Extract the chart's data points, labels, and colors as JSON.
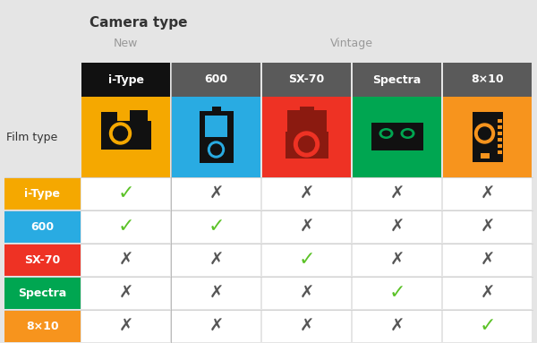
{
  "title": "Camera type",
  "subtitle_new": "New",
  "subtitle_vintage": "Vintage",
  "film_type_label": "Film type",
  "col_headers": [
    "i-Type",
    "600",
    "SX-70",
    "Spectra",
    "8×10"
  ],
  "row_headers": [
    "i-Type",
    "600",
    "SX-70",
    "Spectra",
    "8×10"
  ],
  "col_header_bg": [
    "#111111",
    "#5a5a5a",
    "#5a5a5a",
    "#5a5a5a",
    "#5a5a5a"
  ],
  "col_icon_bg": [
    "#f5a800",
    "#29abe2",
    "#ee3224",
    "#00a651",
    "#f7941d"
  ],
  "row_header_bg": [
    "#f5a800",
    "#29abe2",
    "#ee3224",
    "#00a651",
    "#f7941d"
  ],
  "compatibility": [
    [
      true,
      false,
      false,
      false,
      false
    ],
    [
      true,
      true,
      false,
      false,
      false
    ],
    [
      false,
      false,
      true,
      false,
      false
    ],
    [
      false,
      false,
      false,
      true,
      false
    ],
    [
      false,
      false,
      false,
      false,
      true
    ]
  ],
  "check_color": "#5bc227",
  "cross_color": "#555555",
  "bg_color": "#e5e5e5",
  "cell_bg": "#ffffff",
  "header_text_color": "#ffffff",
  "row_text_color": "#ffffff",
  "title_color": "#333333",
  "subtitle_color": "#999999",
  "film_label_color": "#333333",
  "fig_w": 6.0,
  "fig_h": 3.83,
  "dpi": 100
}
